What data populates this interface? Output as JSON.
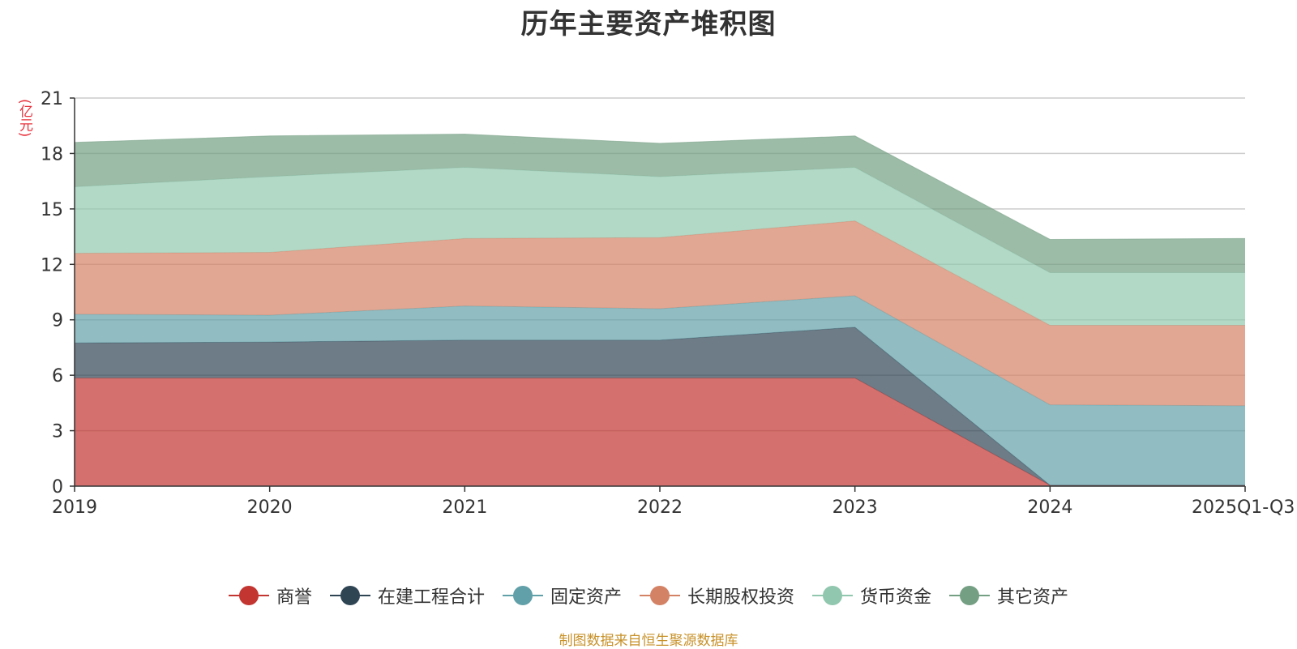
{
  "chart_data": {
    "type": "area",
    "stacked": true,
    "title": "历年主要资产堆积图",
    "ylabel": "(亿元)",
    "xlabel": "",
    "categories": [
      "2019",
      "2020",
      "2021",
      "2022",
      "2023",
      "2024",
      "2025Q1-Q3"
    ],
    "ylim": [
      0,
      21
    ],
    "yticks": [
      0,
      3,
      6,
      9,
      12,
      15,
      18,
      21
    ],
    "grid": true,
    "legend_position": "bottom",
    "series": [
      {
        "name": "商誉",
        "color": "#c23531",
        "values": [
          5.85,
          5.85,
          5.85,
          5.85,
          5.85,
          0.05,
          0.05
        ]
      },
      {
        "name": "在建工程合计",
        "color": "#2f4554",
        "values": [
          1.9,
          1.95,
          2.05,
          2.05,
          2.75,
          0.0,
          0.0
        ]
      },
      {
        "name": "固定资产",
        "color": "#61a0a8",
        "values": [
          1.55,
          1.45,
          1.85,
          1.7,
          1.7,
          4.35,
          4.3
        ]
      },
      {
        "name": "长期股权投资",
        "color": "#d48265",
        "values": [
          3.3,
          3.4,
          3.65,
          3.85,
          4.05,
          4.3,
          4.35
        ]
      },
      {
        "name": "货币资金",
        "color": "#91c7ae",
        "values": [
          3.6,
          4.1,
          3.85,
          3.3,
          2.9,
          2.85,
          2.85
        ]
      },
      {
        "name": "其它资产",
        "color": "#749f83",
        "values": [
          2.4,
          2.2,
          1.8,
          1.8,
          1.7,
          1.8,
          1.85
        ]
      }
    ]
  },
  "source_note": "制图数据来自恒生聚源数据库"
}
